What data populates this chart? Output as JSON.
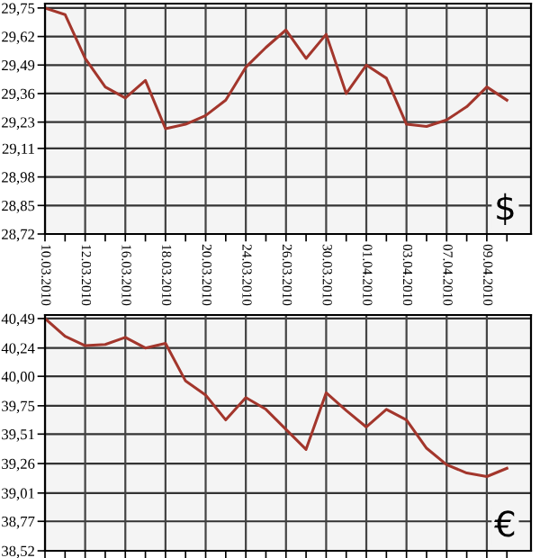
{
  "chart_data": [
    {
      "type": "line",
      "categories": [
        "10.03.2010",
        null,
        "12.03.2010",
        null,
        "16.03.2010",
        null,
        "18.03.2010",
        null,
        "20.03.2010",
        null,
        "24.03.2010",
        null,
        "26.03.2010",
        null,
        "30.03.2010",
        null,
        "01.04.2010",
        null,
        "03.04.2010",
        null,
        "07.04.2010",
        null,
        "09.04.2010",
        null
      ],
      "series": [
        {
          "color": "#a3362c",
          "values": [
            29.75,
            29.72,
            29.52,
            29.39,
            29.34,
            29.42,
            29.2,
            29.22,
            29.26,
            29.33,
            29.48,
            29.57,
            29.65,
            29.52,
            29.63,
            29.36,
            29.49,
            29.43,
            29.22,
            29.21,
            29.24,
            29.3,
            29.39,
            29.33
          ]
        }
      ],
      "ylim": [
        28.72,
        29.77
      ],
      "yticks": [
        {
          "value": 28.72,
          "label": "28,72"
        },
        {
          "value": 28.85,
          "label": "28,85"
        },
        {
          "value": 28.98,
          "label": "28,98"
        },
        {
          "value": 29.11,
          "label": "29,11"
        },
        {
          "value": 29.23,
          "label": "29,23"
        },
        {
          "value": 29.36,
          "label": "29,36"
        },
        {
          "value": 29.49,
          "label": "29,49"
        },
        {
          "value": 29.62,
          "label": "29,62"
        },
        {
          "value": 29.75,
          "label": "29,75"
        }
      ],
      "grid": true,
      "annotations": [
        "$"
      ]
    },
    {
      "type": "line",
      "categories": [
        "10.03.2010",
        null,
        "12.03.2010",
        null,
        "16.03.2010",
        null,
        "18.03.2010",
        null,
        "20.03.2010",
        null,
        "24.03.2010",
        null,
        "26.03.2010",
        null,
        "30.03.2010",
        null,
        "01.04.2010",
        null,
        "03.04.2010",
        null,
        "07.04.2010",
        null,
        "09.04.2010",
        null
      ],
      "series": [
        {
          "color": "#a3362c",
          "values": [
            40.49,
            40.34,
            40.26,
            40.27,
            40.33,
            40.24,
            40.28,
            39.96,
            39.84,
            39.63,
            39.82,
            39.72,
            39.55,
            39.38,
            39.86,
            39.71,
            39.57,
            39.72,
            39.63,
            39.39,
            39.25,
            39.18,
            39.15,
            39.22
          ]
        }
      ],
      "ylim": [
        38.52,
        40.52
      ],
      "yticks": [
        {
          "value": 38.52,
          "label": "38,52"
        },
        {
          "value": 38.77,
          "label": "38,77"
        },
        {
          "value": 39.01,
          "label": "39,01"
        },
        {
          "value": 39.26,
          "label": "39,26"
        },
        {
          "value": 39.51,
          "label": "39,51"
        },
        {
          "value": 39.75,
          "label": "39,75"
        },
        {
          "value": 40.0,
          "label": "40,00"
        },
        {
          "value": 40.24,
          "label": "40,24"
        },
        {
          "value": 40.49,
          "label": "40,49"
        }
      ],
      "grid": true,
      "tick_labels": "y",
      "annotations": [
        "€"
      ]
    }
  ]
}
